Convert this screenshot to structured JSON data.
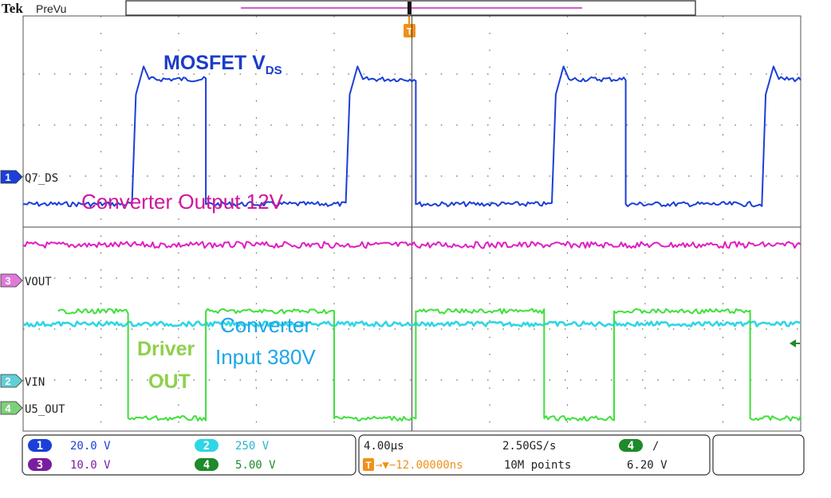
{
  "brand": "Tek",
  "mode": "PreVu",
  "colors": {
    "ch1": "#1b3fd8",
    "ch2": "#2fd6e6",
    "ch3": "#e01ec4",
    "ch4": "#3ee03a",
    "ch3_badge": "#7a1e9e",
    "ch4_badge": "#1e8a2a",
    "trigger": "#f0901a",
    "grid": "#333333",
    "label_blue": "#1c3cc8",
    "label_magenta": "#d0169c",
    "label_green": "#8ed04a",
    "label_cyan": "#1ea6e8"
  },
  "annotations": {
    "vds_main": "MOSFET V",
    "vds_sub": "DS",
    "conv_out": "Converter Output 12V",
    "driver_line1": "Driver",
    "driver_line2": "OUT",
    "conv_in_line1": "Converter",
    "conv_in_line2": "Input 380V"
  },
  "channel_markers": [
    {
      "num": "1",
      "label": "Q7_DS",
      "color": "#1b3fd8"
    },
    {
      "num": "3",
      "label": "VOUT",
      "color": "#e07ad8"
    },
    {
      "num": "2",
      "label": "VIN",
      "color": "#5fd0d8"
    },
    {
      "num": "4",
      "label": "U5_OUT",
      "color": "#7ed07a"
    }
  ],
  "trigger_marker": "T",
  "status": {
    "ch1_num": "1",
    "ch1_scale": "20.0 V",
    "ch2_num": "2",
    "ch2_scale": "250 V",
    "ch3_num": "3",
    "ch3_scale": "10.0 V",
    "ch4_num": "4",
    "ch4_scale": "5.00 V",
    "timebase": "4.00µs",
    "sample_rate": "2.50GS/s",
    "trigger_offset": "→▼−12.00000ns",
    "record_length": "10M points",
    "trig_source": "4",
    "trig_slope": "∕",
    "trig_level": "6.20 V"
  },
  "chart_data": {
    "type": "line",
    "xlabel": "",
    "ylabel": "",
    "x_units": "divisions",
    "y_units": "divisions",
    "xlim": [
      0,
      10
    ],
    "ylim": [
      0,
      8
    ],
    "grid": true,
    "series": [
      {
        "name": "Q7_DS",
        "color": "#1b3fd8",
        "points": [
          [
            0,
            4.45
          ],
          [
            1.4,
            4.45
          ],
          [
            1.45,
            6.6
          ],
          [
            1.55,
            7.15
          ],
          [
            1.62,
            6.9
          ],
          [
            2.35,
            6.9
          ],
          [
            2.35,
            4.45
          ],
          [
            4.15,
            4.45
          ],
          [
            4.2,
            6.6
          ],
          [
            4.3,
            7.15
          ],
          [
            4.37,
            6.9
          ],
          [
            5.05,
            6.9
          ],
          [
            5.05,
            4.45
          ],
          [
            6.8,
            4.45
          ],
          [
            6.85,
            6.6
          ],
          [
            6.95,
            7.15
          ],
          [
            7.02,
            6.9
          ],
          [
            7.75,
            6.9
          ],
          [
            7.75,
            4.45
          ],
          [
            9.5,
            4.45
          ],
          [
            9.55,
            6.6
          ],
          [
            9.65,
            7.15
          ],
          [
            9.72,
            6.9
          ],
          [
            10,
            6.9
          ]
        ]
      },
      {
        "name": "VOUT",
        "color": "#e01ec4",
        "points": [
          [
            0,
            3.65
          ],
          [
            10,
            3.65
          ]
        ]
      },
      {
        "name": "VIN",
        "color": "#2fd6e6",
        "points": [
          [
            0,
            2.1
          ],
          [
            10,
            2.1
          ]
        ]
      },
      {
        "name": "U5_OUT",
        "color": "#3ee03a",
        "points": [
          [
            0.45,
            2.35
          ],
          [
            1.35,
            2.35
          ],
          [
            1.35,
            0.25
          ],
          [
            2.35,
            0.25
          ],
          [
            2.35,
            2.35
          ],
          [
            4.0,
            2.35
          ],
          [
            4.0,
            0.25
          ],
          [
            5.05,
            0.25
          ],
          [
            5.05,
            2.35
          ],
          [
            6.7,
            2.35
          ],
          [
            6.7,
            0.25
          ],
          [
            7.6,
            0.25
          ],
          [
            7.6,
            2.35
          ],
          [
            9.35,
            2.35
          ],
          [
            9.35,
            0.25
          ],
          [
            10,
            0.25
          ]
        ]
      }
    ]
  }
}
